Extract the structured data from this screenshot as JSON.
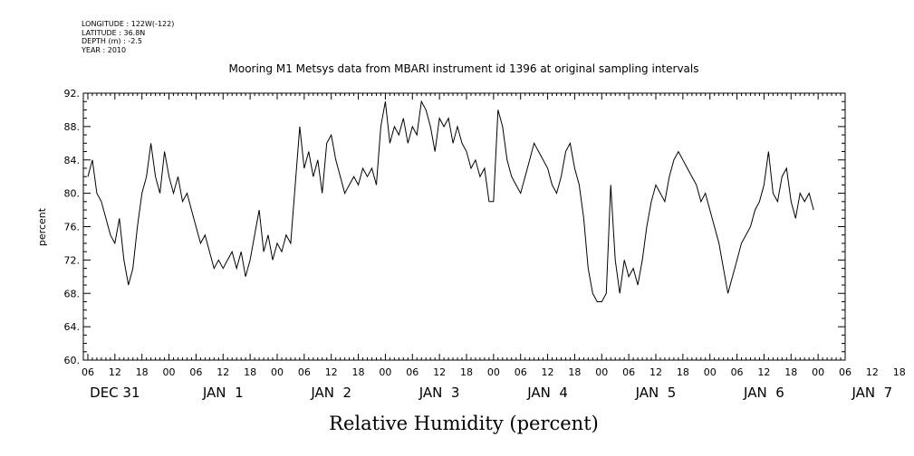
{
  "header": {
    "longitude": "LONGITUDE : 122W(-122)",
    "latitude": "LATITUDE : 36.8N",
    "depth": "DEPTH (m) : -2.5",
    "year": "YEAR : 2010"
  },
  "chart_data": {
    "type": "line",
    "title": "Mooring M1 Metsys data from MBARI instrument id 1396 at original sampling intervals",
    "xlabel": "Relative Humidity (percent)",
    "ylabel": "percent",
    "ylim": [
      60,
      92
    ],
    "yticks": [
      "60.",
      "64.",
      "68.",
      "72.",
      "76.",
      "80.",
      "84.",
      "88.",
      "92."
    ],
    "xlim_hours": [
      -19,
      150
    ],
    "hour_tick_labels": [
      "06",
      "12",
      "18",
      "00",
      "06",
      "12",
      "18",
      "00",
      "06",
      "12",
      "18",
      "00",
      "06",
      "12",
      "18",
      "00",
      "06",
      "12",
      "18",
      "00",
      "06",
      "12",
      "18",
      "00",
      "06",
      "12",
      "18",
      "00",
      "06",
      "12",
      "18",
      "00",
      "06"
    ],
    "day_labels": [
      "DEC 31",
      "JAN  1",
      "JAN  2",
      "JAN  3",
      "JAN  4",
      "JAN  5",
      "JAN  6",
      "JAN  7"
    ],
    "grid": false,
    "series": [
      {
        "color": "#000000",
        "points": [
          [
            -18,
            82
          ],
          [
            -17,
            84
          ],
          [
            -16,
            80
          ],
          [
            -15,
            79
          ],
          [
            -14,
            77
          ],
          [
            -13,
            75
          ],
          [
            -12,
            74
          ],
          [
            -11,
            77
          ],
          [
            -10,
            72
          ],
          [
            -9,
            69
          ],
          [
            -8,
            71
          ],
          [
            -7,
            76
          ],
          [
            -6,
            80
          ],
          [
            -5,
            82
          ],
          [
            -4,
            86
          ],
          [
            -3,
            82
          ],
          [
            -2,
            80
          ],
          [
            -1,
            85
          ],
          [
            0,
            82
          ],
          [
            1,
            80
          ],
          [
            2,
            82
          ],
          [
            3,
            79
          ],
          [
            4,
            80
          ],
          [
            5,
            78
          ],
          [
            6,
            76
          ],
          [
            7,
            74
          ],
          [
            8,
            75
          ],
          [
            9,
            73
          ],
          [
            10,
            71
          ],
          [
            11,
            72
          ],
          [
            12,
            71
          ],
          [
            13,
            72
          ],
          [
            14,
            73
          ],
          [
            15,
            71
          ],
          [
            16,
            73
          ],
          [
            17,
            70
          ],
          [
            18,
            72
          ],
          [
            19,
            75
          ],
          [
            20,
            78
          ],
          [
            21,
            73
          ],
          [
            22,
            75
          ],
          [
            23,
            72
          ],
          [
            24,
            74
          ],
          [
            25,
            73
          ],
          [
            26,
            75
          ],
          [
            27,
            74
          ],
          [
            28,
            81
          ],
          [
            29,
            88
          ],
          [
            30,
            83
          ],
          [
            31,
            85
          ],
          [
            32,
            82
          ],
          [
            33,
            84
          ],
          [
            34,
            80
          ],
          [
            35,
            86
          ],
          [
            36,
            87
          ],
          [
            37,
            84
          ],
          [
            38,
            82
          ],
          [
            39,
            80
          ],
          [
            40,
            81
          ],
          [
            41,
            82
          ],
          [
            42,
            81
          ],
          [
            43,
            83
          ],
          [
            44,
            82
          ],
          [
            45,
            83
          ],
          [
            46,
            81
          ],
          [
            47,
            88
          ],
          [
            48,
            91
          ],
          [
            49,
            86
          ],
          [
            50,
            88
          ],
          [
            51,
            87
          ],
          [
            52,
            89
          ],
          [
            53,
            86
          ],
          [
            54,
            88
          ],
          [
            55,
            87
          ],
          [
            56,
            91
          ],
          [
            57,
            90
          ],
          [
            58,
            88
          ],
          [
            59,
            85
          ],
          [
            60,
            89
          ],
          [
            61,
            88
          ],
          [
            62,
            89
          ],
          [
            63,
            86
          ],
          [
            64,
            88
          ],
          [
            65,
            86
          ],
          [
            66,
            85
          ],
          [
            67,
            83
          ],
          [
            68,
            84
          ],
          [
            69,
            82
          ],
          [
            70,
            83
          ],
          [
            71,
            79
          ],
          [
            72,
            79
          ],
          [
            73,
            90
          ],
          [
            74,
            88
          ],
          [
            75,
            84
          ],
          [
            76,
            82
          ],
          [
            77,
            81
          ],
          [
            78,
            80
          ],
          [
            79,
            82
          ],
          [
            80,
            84
          ],
          [
            81,
            86
          ],
          [
            82,
            85
          ],
          [
            83,
            84
          ],
          [
            84,
            83
          ],
          [
            85,
            81
          ],
          [
            86,
            80
          ],
          [
            87,
            82
          ],
          [
            88,
            85
          ],
          [
            89,
            86
          ],
          [
            90,
            83
          ],
          [
            91,
            81
          ],
          [
            92,
            77
          ],
          [
            93,
            71
          ],
          [
            94,
            68
          ],
          [
            95,
            67
          ],
          [
            96,
            67
          ],
          [
            97,
            68
          ],
          [
            98,
            81
          ],
          [
            99,
            72
          ],
          [
            100,
            68
          ],
          [
            101,
            72
          ],
          [
            102,
            70
          ],
          [
            103,
            71
          ],
          [
            104,
            69
          ],
          [
            105,
            72
          ],
          [
            106,
            76
          ],
          [
            107,
            79
          ],
          [
            108,
            81
          ],
          [
            109,
            80
          ],
          [
            110,
            79
          ],
          [
            111,
            82
          ],
          [
            112,
            84
          ],
          [
            113,
            85
          ],
          [
            114,
            84
          ],
          [
            115,
            83
          ],
          [
            116,
            82
          ],
          [
            117,
            81
          ],
          [
            118,
            79
          ],
          [
            119,
            80
          ],
          [
            120,
            78
          ],
          [
            121,
            76
          ],
          [
            122,
            74
          ],
          [
            123,
            71
          ],
          [
            124,
            68
          ],
          [
            125,
            70
          ],
          [
            126,
            72
          ],
          [
            127,
            74
          ],
          [
            128,
            75
          ],
          [
            129,
            76
          ],
          [
            130,
            78
          ],
          [
            131,
            79
          ],
          [
            132,
            81
          ],
          [
            133,
            85
          ],
          [
            134,
            80
          ],
          [
            135,
            79
          ],
          [
            136,
            82
          ],
          [
            137,
            83
          ],
          [
            138,
            79
          ],
          [
            139,
            77
          ],
          [
            140,
            80
          ],
          [
            141,
            79
          ],
          [
            142,
            80
          ],
          [
            143,
            78
          ]
        ]
      }
    ]
  }
}
